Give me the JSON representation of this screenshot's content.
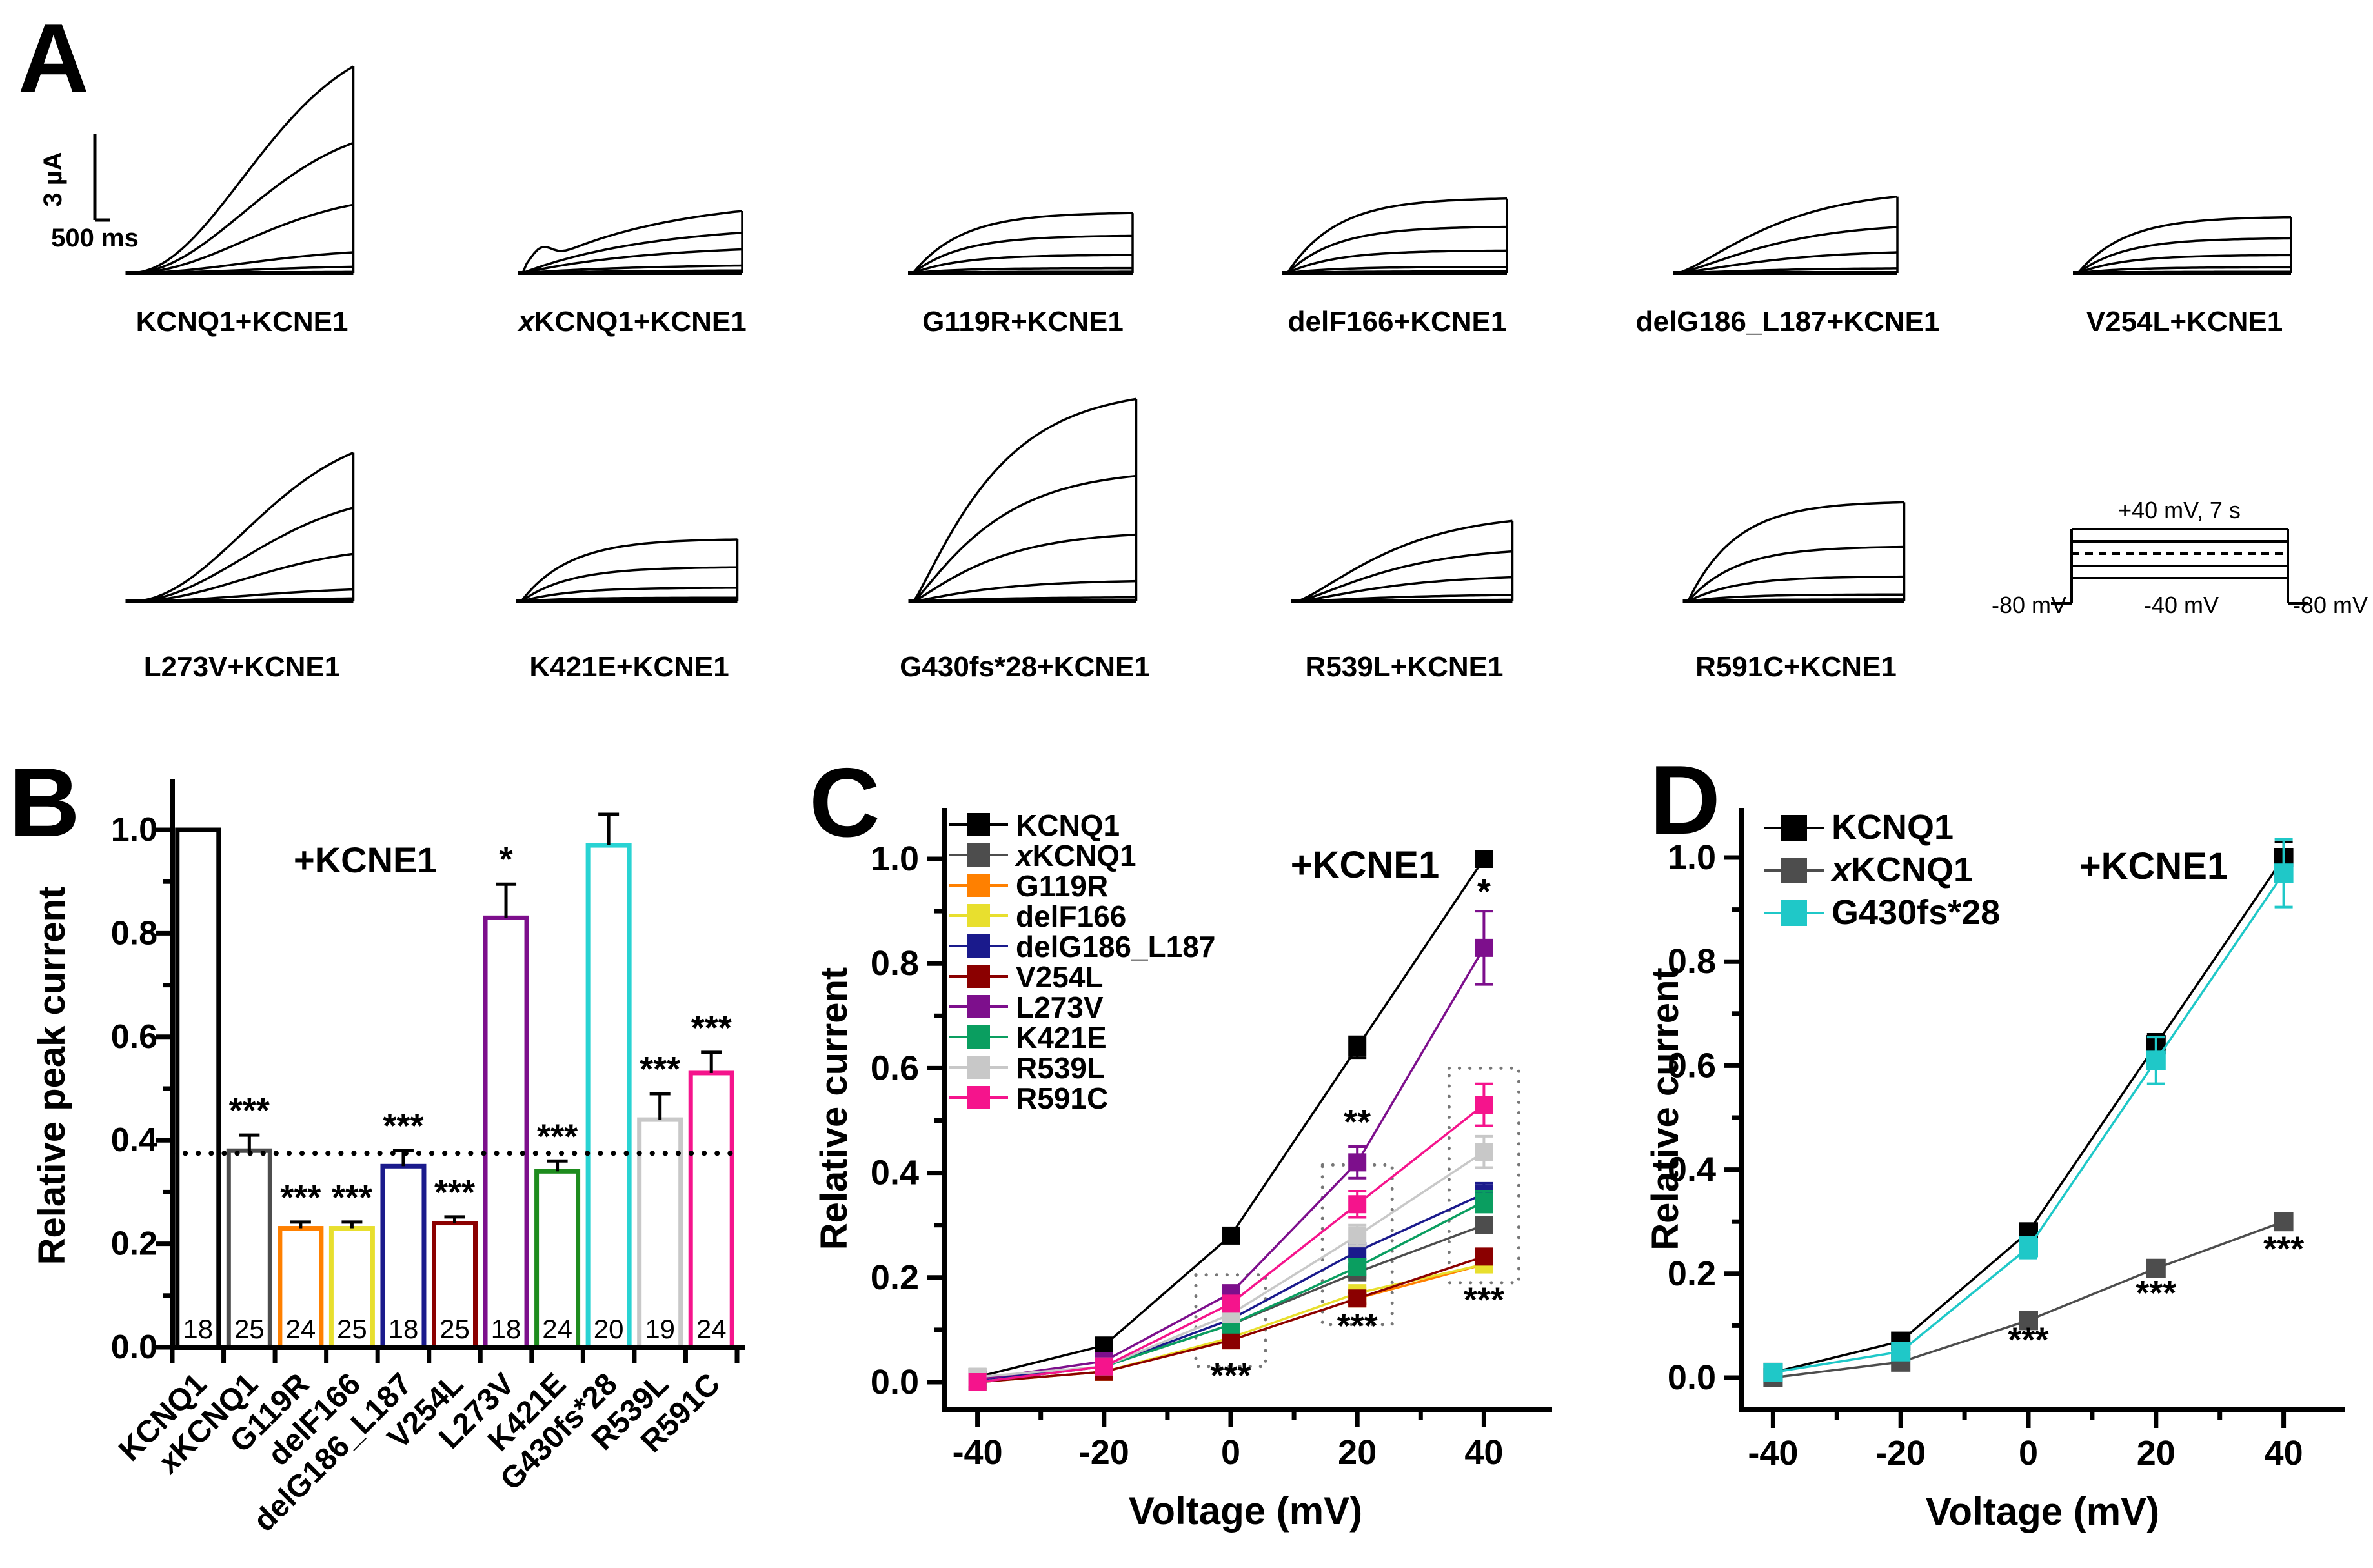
{
  "figure": {
    "background": "#ffffff",
    "panels": {
      "a": "A",
      "b": "B",
      "c": "C",
      "d": "D"
    }
  },
  "panelA": {
    "scalebar": {
      "current": "3 µA",
      "time": "500 ms"
    },
    "traces": [
      {
        "label": "KCNQ1+KCNE1",
        "rel_amp": 1.0,
        "shape": "slow",
        "sweeps": [
          1,
          0.63,
          0.33,
          0.1,
          0.03,
          0.005
        ]
      },
      {
        "label": "xKCNQ1+KCNE1",
        "rel_amp": 0.3,
        "shape": "hump",
        "sweeps": [
          1,
          0.65,
          0.38,
          0.12,
          0.04,
          0.005
        ]
      },
      {
        "label": "G119R+KCNE1",
        "rel_amp": 0.29,
        "shape": "fast",
        "sweeps": [
          1,
          0.62,
          0.3,
          0.08,
          0.02,
          0.005
        ]
      },
      {
        "label": "delF166+KCNE1",
        "rel_amp": 0.36,
        "shape": "fast",
        "sweeps": [
          1,
          0.62,
          0.3,
          0.08,
          0.02,
          0.005
        ]
      },
      {
        "label": "delG186_L187+KCNE1",
        "rel_amp": 0.37,
        "shape": "med",
        "sweeps": [
          1,
          0.6,
          0.27,
          0.06,
          0.01,
          0.005
        ]
      },
      {
        "label": "V254L+KCNE1",
        "rel_amp": 0.27,
        "shape": "fast",
        "sweeps": [
          1,
          0.62,
          0.32,
          0.1,
          0.02,
          0.005
        ]
      },
      {
        "label": "L273V+KCNE1",
        "rel_amp": 0.72,
        "shape": "slow",
        "sweeps": [
          1,
          0.63,
          0.32,
          0.08,
          0.02,
          0.005
        ]
      },
      {
        "label": "K421E+KCNE1",
        "rel_amp": 0.3,
        "shape": "fast",
        "sweeps": [
          1,
          0.55,
          0.22,
          0.06,
          0.01,
          0.005
        ]
      },
      {
        "label": "G430fs*28+KCNE1",
        "rel_amp": 0.98,
        "shape": "medfast",
        "sweeps": [
          1,
          0.62,
          0.33,
          0.1,
          0.02,
          0.005
        ]
      },
      {
        "label": "R539L+KCNE1",
        "rel_amp": 0.39,
        "shape": "med",
        "sweeps": [
          1,
          0.62,
          0.3,
          0.08,
          0.02,
          0.005
        ]
      },
      {
        "label": "R591C+KCNE1",
        "rel_amp": 0.48,
        "shape": "fast",
        "sweeps": [
          1,
          0.55,
          0.25,
          0.07,
          0.02,
          0.005
        ]
      }
    ],
    "protocol": {
      "top": "+40 mV, 7 s",
      "left": "-80 mV",
      "mid": "-40 mV",
      "right": "-80 mV",
      "steps": 5
    }
  },
  "chart_data": [
    {
      "type": "bar",
      "panel": "B",
      "ylabel": "Relative peak current",
      "annotation": "+KCNE1",
      "ylim": [
        0,
        1.1
      ],
      "yticks": [
        0.0,
        0.2,
        0.4,
        0.6,
        0.8,
        1.0
      ],
      "reference_line": 0.375,
      "categories": [
        "KCNQ1",
        "xKCNQ1",
        "G119R",
        "delF166",
        "delG186_L187",
        "V254L",
        "L273V",
        "K421E",
        "G430fs*28",
        "R539L",
        "R591C"
      ],
      "values": [
        1.0,
        0.38,
        0.23,
        0.23,
        0.35,
        0.24,
        0.83,
        0.34,
        0.97,
        0.44,
        0.53
      ],
      "errors": [
        0,
        0.03,
        0.012,
        0.012,
        0.03,
        0.012,
        0.065,
        0.02,
        0.06,
        0.05,
        0.04
      ],
      "n": [
        18,
        25,
        24,
        25,
        18,
        25,
        18,
        24,
        20,
        19,
        24
      ],
      "significance": [
        "",
        "***",
        "***",
        "***",
        "***",
        "***",
        "*",
        "***",
        "",
        "***",
        "***"
      ],
      "colors": [
        "#000000",
        "#4d4d4d",
        "#ff8000",
        "#e8df2e",
        "#1a1a8c",
        "#8b0000",
        "#7d0f8c",
        "#1e8c1e",
        "#29d3d3",
        "#c8c8c8",
        "#f5148c"
      ]
    },
    {
      "type": "line",
      "panel": "C",
      "xlabel": "Voltage (mV)",
      "ylabel": "Relative current",
      "annotation": "+KCNE1",
      "x": [
        -40,
        -20,
        0,
        20,
        40
      ],
      "xticks": [
        -40,
        -20,
        0,
        20,
        40
      ],
      "yticks": [
        0.0,
        0.2,
        0.4,
        0.6,
        0.8,
        1.0
      ],
      "legend_position": "top-left",
      "series": [
        {
          "name": "KCNQ1",
          "color": "#000000",
          "values": [
            0.01,
            0.07,
            0.28,
            0.64,
            1.0
          ],
          "errors": [
            0.004,
            0.008,
            0.012,
            0.02,
            0
          ]
        },
        {
          "name": "xKCNQ1",
          "color": "#4d4d4d",
          "values": [
            0.0,
            0.03,
            0.11,
            0.21,
            0.3
          ],
          "errors": [
            0.003,
            0.005,
            0.008,
            0.01,
            0.015
          ]
        },
        {
          "name": "G119R",
          "color": "#ff8000",
          "values": [
            0.0,
            0.02,
            0.08,
            0.16,
            0.225
          ],
          "errors": [
            0.002,
            0.004,
            0.006,
            0.01,
            0.012
          ]
        },
        {
          "name": "delF166",
          "color": "#e8df2e",
          "values": [
            0.0,
            0.02,
            0.085,
            0.17,
            0.225
          ],
          "errors": [
            0.002,
            0.004,
            0.006,
            0.01,
            0.012
          ]
        },
        {
          "name": "delG186_L187",
          "color": "#1a1a8c",
          "values": [
            0.005,
            0.03,
            0.12,
            0.25,
            0.36
          ],
          "errors": [
            0.003,
            0.005,
            0.01,
            0.015,
            0.02
          ]
        },
        {
          "name": "V254L",
          "color": "#8b0000",
          "values": [
            0.0,
            0.02,
            0.08,
            0.16,
            0.24
          ],
          "errors": [
            0.002,
            0.004,
            0.006,
            0.01,
            0.012
          ]
        },
        {
          "name": "L273V",
          "color": "#7d0f8c",
          "values": [
            0.005,
            0.04,
            0.17,
            0.42,
            0.83
          ],
          "errors": [
            0.003,
            0.006,
            0.012,
            0.03,
            0.07
          ]
        },
        {
          "name": "K421E",
          "color": "#0a9e60",
          "values": [
            0.0,
            0.03,
            0.11,
            0.22,
            0.345
          ],
          "errors": [
            0.003,
            0.005,
            0.01,
            0.015,
            0.02
          ]
        },
        {
          "name": "R539L",
          "color": "#c8c8c8",
          "values": [
            0.01,
            0.03,
            0.13,
            0.28,
            0.44
          ],
          "errors": [
            0.003,
            0.005,
            0.012,
            0.02,
            0.03
          ]
        },
        {
          "name": "R591C",
          "color": "#f5148c",
          "values": [
            0.0,
            0.03,
            0.15,
            0.34,
            0.53
          ],
          "errors": [
            0.003,
            0.005,
            0.012,
            0.025,
            0.04
          ]
        }
      ],
      "sig_labels": [
        {
          "text": "**",
          "x_mv": 20,
          "y_val": 0.475
        },
        {
          "text": "*",
          "x_mv": 40,
          "y_val": 0.915
        },
        {
          "text": "***",
          "x_mv": 0,
          "y_val": -0.01
        },
        {
          "text": "***",
          "x_mv": 20,
          "y_val": 0.085
        },
        {
          "text": "***",
          "x_mv": 40,
          "y_val": 0.135
        }
      ],
      "dotted_boxes": [
        {
          "x_mv": 0,
          "y_low": 0.03,
          "y_high": 0.205
        },
        {
          "x_mv": 20,
          "y_low": 0.11,
          "y_high": 0.415
        },
        {
          "x_mv": 40,
          "y_low": 0.19,
          "y_high": 0.6
        }
      ]
    },
    {
      "type": "line",
      "panel": "D",
      "xlabel": "Voltage (mV)",
      "ylabel": "Relative current",
      "annotation": "+KCNE1",
      "x": [
        -40,
        -20,
        0,
        20,
        40
      ],
      "xticks": [
        -40,
        -20,
        0,
        20,
        40
      ],
      "yticks": [
        0.0,
        0.2,
        0.4,
        0.6,
        0.8,
        1.0
      ],
      "legend_position": "top-left",
      "series": [
        {
          "name": "KCNQ1",
          "color": "#000000",
          "values": [
            0.01,
            0.07,
            0.28,
            0.64,
            1.0
          ],
          "errors": [
            0.005,
            0.01,
            0.015,
            0.02,
            0.03
          ]
        },
        {
          "name": "xKCNQ1",
          "color": "#4d4d4d",
          "values": [
            0.0,
            0.03,
            0.11,
            0.21,
            0.3
          ],
          "errors": [
            0.003,
            0.005,
            0.008,
            0.01,
            0.015
          ]
        },
        {
          "name": "G430fs*28",
          "color": "#1fc8c8",
          "values": [
            0.01,
            0.05,
            0.25,
            0.61,
            0.97
          ],
          "errors": [
            0.005,
            0.012,
            0.02,
            0.045,
            0.065
          ]
        }
      ],
      "sig_labels": [
        {
          "text": "***",
          "x_mv": 0,
          "y_val": 0.05
        },
        {
          "text": "***",
          "x_mv": 20,
          "y_val": 0.14
        },
        {
          "text": "***",
          "x_mv": 40,
          "y_val": 0.225
        }
      ]
    }
  ]
}
